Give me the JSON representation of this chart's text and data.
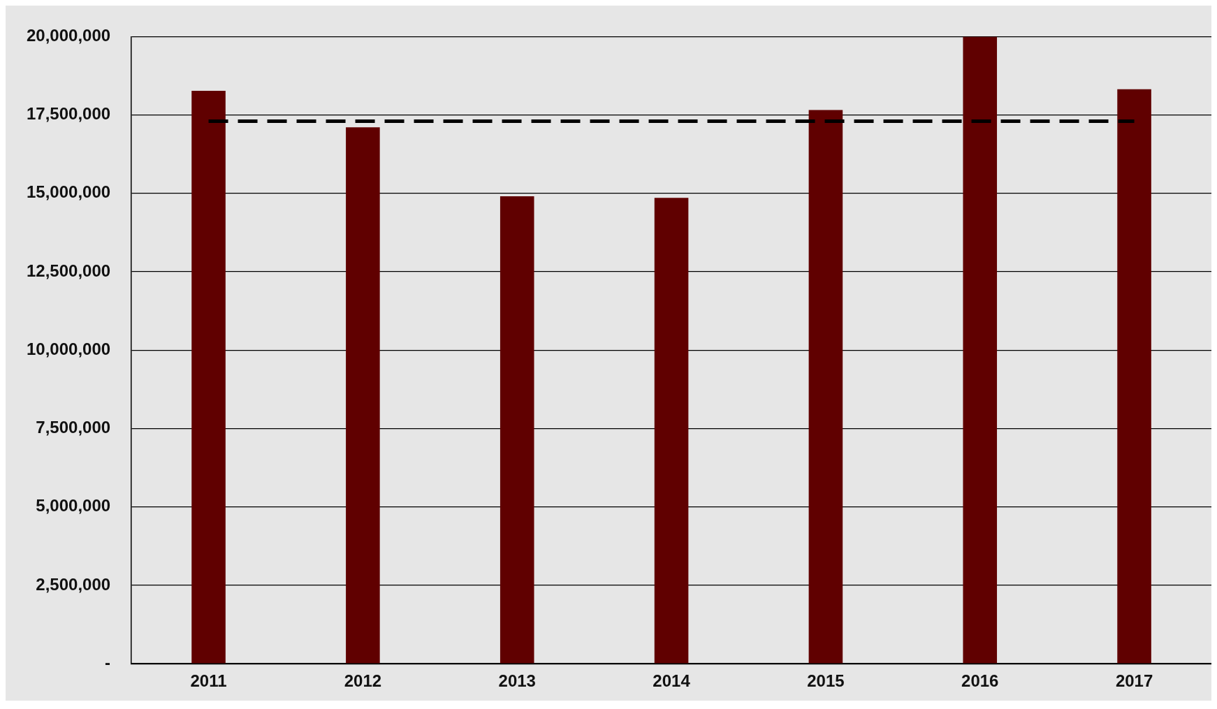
{
  "chart_data": {
    "type": "bar",
    "categories": [
      "2011",
      "2012",
      "2013",
      "2014",
      "2015",
      "2016",
      "2017"
    ],
    "series": [
      {
        "color": "#600000",
        "values": [
          18270000,
          17110000,
          14910000,
          14860000,
          17660000,
          20000000,
          18320000
        ]
      }
    ],
    "ylim": [
      0,
      20000000
    ],
    "yticks": [
      {
        "value": 0,
        "label": "-"
      },
      {
        "value": 2500000,
        "label": "2,500,000"
      },
      {
        "value": 5000000,
        "label": "5,000,000"
      },
      {
        "value": 7500000,
        "label": "7,500,000"
      },
      {
        "value": 10000000,
        "label": "10,000,000"
      },
      {
        "value": 12500000,
        "label": "12,500,000"
      },
      {
        "value": 15000000,
        "label": "15,000,000"
      },
      {
        "value": 17500000,
        "label": "17,500,000"
      },
      {
        "value": 20000000,
        "label": "20,000,000"
      }
    ],
    "ref_lines": [
      {
        "axis": "y",
        "value": 17300000,
        "color": "#000000",
        "line_style": "dashed"
      }
    ],
    "grid": "y",
    "legend": false
  }
}
